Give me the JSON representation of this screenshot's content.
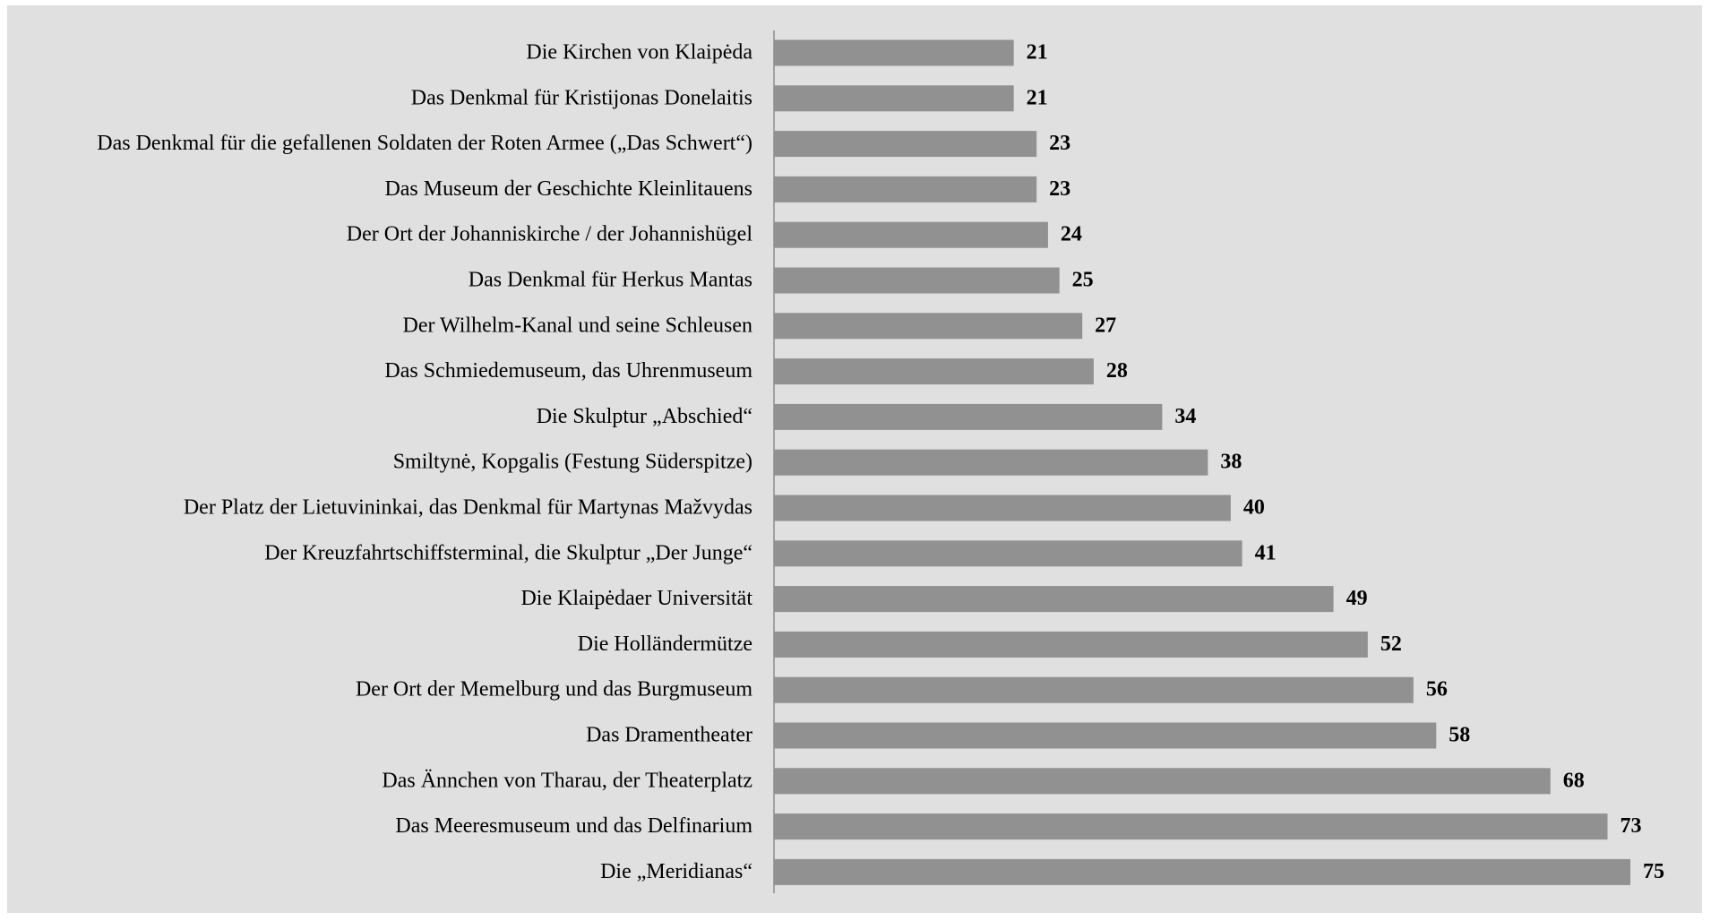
{
  "chart_data": {
    "type": "bar",
    "orientation": "horizontal",
    "categories": [
      "Die Kirchen von Klaipėda",
      "Das Denkmal für Kristijonas Donelaitis",
      "Das Denkmal für die gefallenen Soldaten der Roten Armee („Das Schwert“)",
      "Das Museum der Geschichte Kleinlitauens",
      "Der Ort der Johanniskirche / der Johannishügel",
      "Das Denkmal für Herkus Mantas",
      "Der Wilhelm-Kanal und seine Schleusen",
      "Das Schmiedemuseum, das Uhrenmuseum",
      "Die Skulptur „Abschied“",
      "Smiltynė, Kopgalis (Festung Süderspitze)",
      "Der Platz der Lietuvininkai, das Denkmal für Martynas Mažvydas",
      "Der Kreuzfahrtschiffsterminal, die Skulptur „Der Junge“",
      "Die Klaipėdaer Universität",
      "Die Holländermütze",
      "Der Ort der Memelburg und das Burgmuseum",
      "Das Dramentheater",
      "Das Ännchen von Tharau, der Theaterplatz",
      "Das Meeresmuseum und das Delfinarium",
      "Die „Meridianas“"
    ],
    "values": [
      21,
      21,
      23,
      23,
      24,
      25,
      27,
      28,
      34,
      38,
      40,
      41,
      49,
      52,
      56,
      58,
      68,
      73,
      75
    ],
    "color": "#919191"
  }
}
